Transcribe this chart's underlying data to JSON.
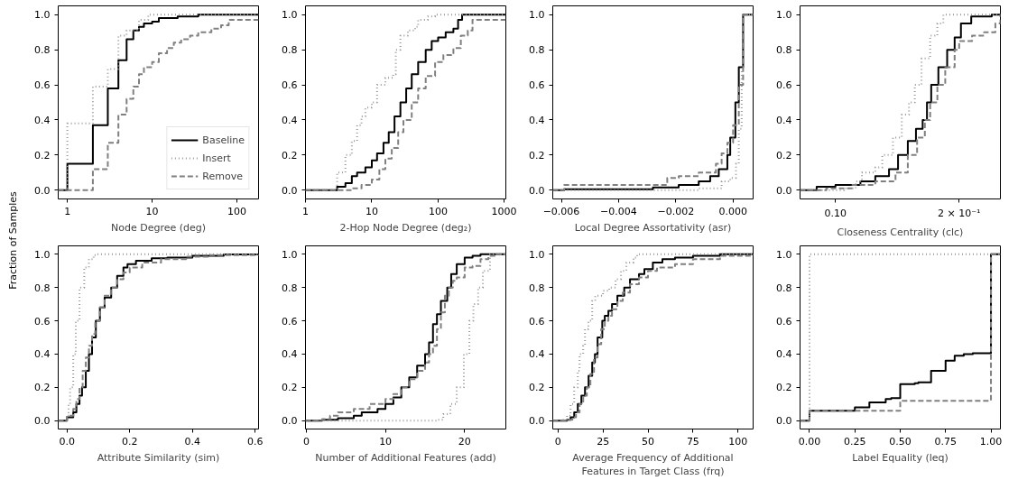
{
  "chart_data": [
    {
      "type": "step",
      "ylabel": "Fraction of Samples",
      "xlabel": "Node Degree (deg)",
      "log": "x",
      "xlim": [
        0.78,
        180
      ],
      "xticks": [
        1,
        10,
        100
      ],
      "ylim": [
        -0.05,
        1.05
      ],
      "yticks": [
        {
          "value": 0,
          "label": "0.0"
        },
        {
          "value": 0.2,
          "label": "0.2"
        },
        {
          "value": 0.4,
          "label": "0.4"
        },
        {
          "value": 0.6,
          "label": "0.6"
        },
        {
          "value": 0.8,
          "label": "0.8"
        },
        {
          "value": 1,
          "label": "1.0"
        }
      ],
      "legend": "bottom right",
      "series": [
        {
          "name": "Baseline",
          "color": "#000000",
          "line_style": "solid",
          "x": [
            0.78,
            1,
            2,
            3,
            4,
            5,
            6,
            7,
            8,
            10,
            12,
            20,
            35,
            180
          ],
          "values": [
            0,
            0.15,
            0.37,
            0.58,
            0.74,
            0.86,
            0.91,
            0.93,
            0.95,
            0.96,
            0.98,
            0.99,
            1.0,
            1.0
          ]
        },
        {
          "name": "Insert",
          "color": "#999999",
          "line_style": "dotted",
          "x": [
            0.78,
            1,
            2,
            3,
            4,
            5,
            7,
            9,
            180
          ],
          "values": [
            0,
            0.38,
            0.59,
            0.69,
            0.88,
            0.91,
            0.97,
            1.0,
            1.0
          ]
        },
        {
          "name": "Remove",
          "color": "#808080",
          "line_style": "dashed",
          "x": [
            0.78,
            2,
            3,
            4,
            5,
            6,
            7,
            8,
            10,
            12,
            15,
            18,
            22,
            28,
            35,
            50,
            65,
            80,
            180
          ],
          "values": [
            0,
            0.12,
            0.27,
            0.43,
            0.52,
            0.59,
            0.66,
            0.7,
            0.73,
            0.78,
            0.81,
            0.84,
            0.86,
            0.88,
            0.9,
            0.92,
            0.94,
            0.97,
            0.97
          ]
        }
      ]
    },
    {
      "type": "step",
      "xlabel": "2-Hop Node Degree (deg₂)",
      "log": "x",
      "xlim": [
        1,
        1050
      ],
      "xticks": [
        1,
        10,
        100,
        1000
      ],
      "ylim": [
        -0.05,
        1.05
      ],
      "yticks": [
        {
          "value": 0,
          "label": "0.0"
        },
        {
          "value": 0.2,
          "label": "0.2"
        },
        {
          "value": 0.4,
          "label": "0.4"
        },
        {
          "value": 0.6,
          "label": "0.6"
        },
        {
          "value": 0.8,
          "label": "0.8"
        },
        {
          "value": 1,
          "label": "1.0"
        }
      ],
      "series": [
        {
          "color": "#000000",
          "line_style": "solid",
          "x": [
            1,
            3,
            4,
            5,
            6,
            8,
            10,
            12,
            15,
            18,
            22,
            27,
            33,
            40,
            50,
            65,
            80,
            100,
            130,
            170,
            200,
            230,
            1050
          ],
          "values": [
            0,
            0.02,
            0.04,
            0.08,
            0.1,
            0.13,
            0.17,
            0.21,
            0.27,
            0.33,
            0.42,
            0.5,
            0.58,
            0.66,
            0.73,
            0.8,
            0.85,
            0.87,
            0.9,
            0.92,
            0.97,
            1.0,
            1.0
          ]
        },
        {
          "color": "#999999",
          "line_style": "dotted",
          "x": [
            1,
            3,
            4,
            5,
            6,
            7,
            8,
            10,
            12,
            16,
            21,
            23,
            27,
            35,
            45,
            50,
            70,
            90,
            1050
          ],
          "values": [
            0,
            0.1,
            0.2,
            0.28,
            0.37,
            0.42,
            0.47,
            0.5,
            0.6,
            0.64,
            0.66,
            0.8,
            0.88,
            0.91,
            0.93,
            0.97,
            0.99,
            1.0,
            1.0
          ]
        },
        {
          "color": "#808080",
          "line_style": "dashed",
          "x": [
            1,
            5,
            7,
            10,
            13,
            16,
            20,
            25,
            30,
            40,
            50,
            65,
            90,
            120,
            170,
            220,
            280,
            330,
            1050
          ],
          "values": [
            0,
            0.01,
            0.03,
            0.06,
            0.12,
            0.18,
            0.24,
            0.33,
            0.4,
            0.5,
            0.58,
            0.65,
            0.73,
            0.77,
            0.81,
            0.88,
            0.91,
            0.97,
            0.97
          ]
        }
      ]
    },
    {
      "type": "step",
      "xlabel": "Local Degree Assortativity (asr)",
      "xlim": [
        -0.0063,
        0.0007
      ],
      "xticks": [
        {
          "value": -0.006,
          "label": "−0.006"
        },
        {
          "value": -0.004,
          "label": "−0.004"
        },
        {
          "value": -0.002,
          "label": "−0.002"
        },
        {
          "value": 0,
          "label": "0.000"
        }
      ],
      "ylim": [
        -0.05,
        1.05
      ],
      "yticks": [
        {
          "value": 0,
          "label": "0.0"
        },
        {
          "value": 0.2,
          "label": "0.2"
        },
        {
          "value": 0.4,
          "label": "0.4"
        },
        {
          "value": 0.6,
          "label": "0.6"
        },
        {
          "value": 0.8,
          "label": "0.8"
        },
        {
          "value": 1,
          "label": "1.0"
        }
      ],
      "series": [
        {
          "color": "#000000",
          "line_style": "solid",
          "x": [
            -0.0063,
            -0.0059,
            -0.0028,
            -0.0019,
            -0.0012,
            -0.0008,
            -0.0005,
            -0.0002,
            -0.0001,
            8e-05,
            0.0002,
            0.00035,
            0.0007
          ],
          "values": [
            0,
            0.005,
            0.015,
            0.03,
            0.05,
            0.08,
            0.12,
            0.2,
            0.3,
            0.5,
            0.7,
            1.0,
            1.0
          ]
        },
        {
          "color": "#999999",
          "line_style": "dotted",
          "x": [
            -0.0063,
            -0.0012,
            -0.0004,
            -0.0001,
            0.0001,
            0.0002,
            0.0003,
            0.00035,
            0.0007
          ],
          "values": [
            0,
            0.01,
            0.05,
            0.07,
            0.15,
            0.35,
            0.7,
            1.0,
            1.0
          ]
        },
        {
          "color": "#808080",
          "line_style": "dashed",
          "x": [
            -0.0063,
            -0.0059,
            -0.0023,
            -0.0019,
            -0.0012,
            -0.0006,
            -0.0004,
            -0.0002,
            0.0,
            0.0002,
            0.00035,
            0.0007
          ],
          "values": [
            0,
            0.03,
            0.07,
            0.08,
            0.1,
            0.15,
            0.21,
            0.27,
            0.37,
            0.6,
            1.0,
            1.0
          ]
        }
      ]
    },
    {
      "type": "step",
      "xlabel": "Closeness Centrality (clc)",
      "log": "x",
      "xlim": [
        0.082,
        0.252
      ],
      "xticks": [
        {
          "value": 0.1,
          "label": "0.10"
        },
        {
          "value": 0.2,
          "label": "2 × 10⁻¹"
        }
      ],
      "ylim": [
        -0.05,
        1.05
      ],
      "yticks": [
        {
          "value": 0,
          "label": "0.0"
        },
        {
          "value": 0.2,
          "label": "0.2"
        },
        {
          "value": 0.4,
          "label": "0.4"
        },
        {
          "value": 0.6,
          "label": "0.6"
        },
        {
          "value": 0.8,
          "label": "0.8"
        },
        {
          "value": 1,
          "label": "1.0"
        }
      ],
      "series": [
        {
          "color": "#000000",
          "line_style": "solid",
          "x": [
            0.082,
            0.09,
            0.1,
            0.115,
            0.125,
            0.135,
            0.142,
            0.15,
            0.157,
            0.163,
            0.167,
            0.171,
            0.178,
            0.187,
            0.195,
            0.202,
            0.214,
            0.24,
            0.252
          ],
          "values": [
            0,
            0.02,
            0.03,
            0.05,
            0.08,
            0.12,
            0.2,
            0.28,
            0.35,
            0.4,
            0.5,
            0.6,
            0.7,
            0.8,
            0.87,
            0.95,
            0.99,
            1.0,
            1.0
          ]
        },
        {
          "color": "#999999",
          "line_style": "dotted",
          "x": [
            0.082,
            0.105,
            0.112,
            0.116,
            0.125,
            0.13,
            0.138,
            0.145,
            0.151,
            0.156,
            0.162,
            0.17,
            0.177,
            0.183,
            0.252
          ],
          "values": [
            0,
            0.01,
            0.05,
            0.1,
            0.13,
            0.2,
            0.3,
            0.43,
            0.5,
            0.6,
            0.75,
            0.88,
            0.95,
            1.0,
            1.0
          ]
        },
        {
          "color": "#808080",
          "line_style": "dashed",
          "x": [
            0.082,
            0.095,
            0.11,
            0.125,
            0.14,
            0.15,
            0.158,
            0.165,
            0.17,
            0.177,
            0.185,
            0.195,
            0.2,
            0.215,
            0.23,
            0.245,
            0.252
          ],
          "values": [
            0,
            0.01,
            0.03,
            0.05,
            0.1,
            0.2,
            0.3,
            0.4,
            0.5,
            0.6,
            0.7,
            0.8,
            0.85,
            0.88,
            0.9,
            0.95,
            1.0
          ]
        }
      ]
    },
    {
      "type": "step",
      "xlabel": "Attribute Similarity (sim)",
      "xlim": [
        -0.028,
        0.611
      ],
      "xticks": [
        {
          "value": 0,
          "label": "0.0"
        },
        {
          "value": 0.2,
          "label": "0.2"
        },
        {
          "value": 0.4,
          "label": "0.4"
        },
        {
          "value": 0.6,
          "label": "0.6"
        }
      ],
      "ylim": [
        -0.05,
        1.05
      ],
      "yticks": [
        {
          "value": 0,
          "label": "0.0"
        },
        {
          "value": 0.2,
          "label": "0.2"
        },
        {
          "value": 0.4,
          "label": "0.4"
        },
        {
          "value": 0.6,
          "label": "0.6"
        },
        {
          "value": 0.8,
          "label": "0.8"
        },
        {
          "value": 1,
          "label": "1.0"
        }
      ],
      "series": [
        {
          "color": "#000000",
          "line_style": "solid",
          "x": [
            -0.028,
            0.0,
            0.02,
            0.03,
            0.04,
            0.048,
            0.06,
            0.07,
            0.08,
            0.092,
            0.105,
            0.12,
            0.141,
            0.16,
            0.18,
            0.193,
            0.22,
            0.27,
            0.32,
            0.4,
            0.5,
            0.611
          ],
          "values": [
            0,
            0.02,
            0.05,
            0.1,
            0.15,
            0.2,
            0.3,
            0.4,
            0.5,
            0.6,
            0.68,
            0.74,
            0.8,
            0.87,
            0.92,
            0.94,
            0.96,
            0.975,
            0.98,
            0.99,
            0.998,
            1.0
          ]
        },
        {
          "color": "#999999",
          "line_style": "dotted",
          "x": [
            -0.028,
            0.0,
            0.005,
            0.01,
            0.02,
            0.028,
            0.04,
            0.055,
            0.07,
            0.085,
            0.097,
            0.611
          ],
          "values": [
            0,
            0.03,
            0.1,
            0.2,
            0.4,
            0.6,
            0.8,
            0.92,
            0.97,
            0.995,
            1.0,
            1.0
          ]
        },
        {
          "color": "#808080",
          "line_style": "dashed",
          "x": [
            -0.028,
            0.0,
            0.02,
            0.03,
            0.04,
            0.05,
            0.06,
            0.07,
            0.08,
            0.09,
            0.105,
            0.12,
            0.14,
            0.16,
            0.18,
            0.2,
            0.24,
            0.3,
            0.38,
            0.45,
            0.611
          ],
          "values": [
            0,
            0.03,
            0.07,
            0.13,
            0.2,
            0.3,
            0.38,
            0.45,
            0.52,
            0.6,
            0.68,
            0.75,
            0.8,
            0.85,
            0.89,
            0.92,
            0.95,
            0.97,
            0.985,
            0.995,
            1.0
          ]
        }
      ]
    },
    {
      "type": "step",
      "xlabel": "Number of Additional Features (add)",
      "xlim": [
        -0.1,
        25.2
      ],
      "xticks": [
        0,
        10,
        20
      ],
      "ylim": [
        -0.05,
        1.05
      ],
      "yticks": [
        {
          "value": 0,
          "label": "0.0"
        },
        {
          "value": 0.2,
          "label": "0.2"
        },
        {
          "value": 0.4,
          "label": "0.4"
        },
        {
          "value": 0.6,
          "label": "0.6"
        },
        {
          "value": 0.8,
          "label": "0.8"
        },
        {
          "value": 1,
          "label": "1.0"
        }
      ],
      "series": [
        {
          "color": "#000000",
          "line_style": "solid",
          "x": [
            -0.1,
            2,
            4,
            6,
            7,
            9,
            10,
            11,
            12,
            13,
            14,
            15,
            15.5,
            16,
            16.5,
            17,
            17.8,
            18.3,
            19,
            20,
            21,
            22,
            25.2
          ],
          "values": [
            0,
            0.005,
            0.015,
            0.03,
            0.05,
            0.07,
            0.1,
            0.14,
            0.2,
            0.26,
            0.33,
            0.4,
            0.47,
            0.58,
            0.64,
            0.72,
            0.8,
            0.88,
            0.94,
            0.98,
            0.99,
            1.0,
            1.0
          ]
        },
        {
          "color": "#999999",
          "line_style": "dotted",
          "x": [
            -0.1,
            16.5,
            17.3,
            18.2,
            19,
            19.9,
            20.6,
            21.1,
            21.7,
            22.3,
            23.2,
            25.2
          ],
          "values": [
            0,
            0.005,
            0.04,
            0.1,
            0.2,
            0.4,
            0.6,
            0.7,
            0.8,
            0.9,
            1.0,
            1.0
          ]
        },
        {
          "color": "#808080",
          "line_style": "dashed",
          "x": [
            -0.1,
            2,
            3,
            4,
            6,
            8,
            10,
            11,
            12,
            13,
            14,
            15,
            15.5,
            16,
            16.5,
            17,
            17.5,
            18,
            18.5,
            19,
            20,
            21,
            22,
            23,
            24,
            25.2
          ],
          "values": [
            0,
            0.01,
            0.03,
            0.05,
            0.07,
            0.1,
            0.13,
            0.16,
            0.2,
            0.25,
            0.3,
            0.35,
            0.4,
            0.45,
            0.55,
            0.65,
            0.75,
            0.8,
            0.84,
            0.86,
            0.92,
            0.93,
            0.97,
            0.99,
            1.0,
            1.0
          ]
        }
      ]
    },
    {
      "type": "step",
      "xlabel": "Average Frequency of Additional\nFeatures in Target Class (frq)",
      "xlim": [
        -2.9,
        108.4
      ],
      "xticks": [
        0,
        25,
        50,
        75,
        100
      ],
      "ylim": [
        -0.05,
        1.05
      ],
      "yticks": [
        {
          "value": 0,
          "label": "0.0"
        },
        {
          "value": 0.2,
          "label": "0.2"
        },
        {
          "value": 0.4,
          "label": "0.4"
        },
        {
          "value": 0.6,
          "label": "0.6"
        },
        {
          "value": 0.8,
          "label": "0.8"
        },
        {
          "value": 1,
          "label": "1.0"
        }
      ],
      "series": [
        {
          "color": "#000000",
          "line_style": "solid",
          "x": [
            -2.9,
            5,
            7,
            9,
            11,
            13,
            15,
            17,
            19,
            20.5,
            22,
            24.6,
            26,
            28,
            30,
            33,
            36.8,
            40,
            45,
            48,
            52.7,
            58,
            65,
            75,
            90,
            108.4
          ],
          "values": [
            0,
            0.005,
            0.02,
            0.05,
            0.1,
            0.15,
            0.2,
            0.27,
            0.35,
            0.4,
            0.5,
            0.6,
            0.63,
            0.66,
            0.7,
            0.75,
            0.8,
            0.85,
            0.88,
            0.91,
            0.95,
            0.97,
            0.98,
            0.99,
            1.0,
            1.0
          ]
        },
        {
          "color": "#999999",
          "line_style": "dotted",
          "x": [
            -2.9,
            3,
            5,
            7,
            9,
            11,
            12,
            14,
            15,
            16.9,
            19,
            20.7,
            25,
            28.5,
            32,
            35,
            38,
            42,
            44,
            108.4
          ],
          "values": [
            0,
            0.005,
            0.03,
            0.1,
            0.2,
            0.3,
            0.4,
            0.45,
            0.55,
            0.6,
            0.72,
            0.75,
            0.78,
            0.8,
            0.85,
            0.9,
            0.95,
            0.98,
            1.0,
            1.0
          ]
        },
        {
          "color": "#808080",
          "line_style": "dashed",
          "x": [
            -2.9,
            5,
            8,
            10,
            12,
            14,
            16,
            18,
            20,
            22,
            24,
            26,
            28,
            30,
            33,
            36,
            40,
            45,
            50,
            55,
            65,
            75,
            90,
            108.4
          ],
          "values": [
            0,
            0.005,
            0.02,
            0.05,
            0.1,
            0.15,
            0.2,
            0.28,
            0.38,
            0.46,
            0.55,
            0.6,
            0.63,
            0.67,
            0.72,
            0.77,
            0.82,
            0.86,
            0.9,
            0.92,
            0.94,
            0.97,
            0.99,
            1.0
          ]
        }
      ]
    },
    {
      "type": "step",
      "xlabel": "Label Equality (leq)",
      "xlim": [
        -0.052,
        1.052
      ],
      "xticks": [
        {
          "value": 0,
          "label": "0.00"
        },
        {
          "value": 0.25,
          "label": "0.25"
        },
        {
          "value": 0.5,
          "label": "0.50"
        },
        {
          "value": 0.75,
          "label": "0.75"
        },
        {
          "value": 1,
          "label": "1.00"
        }
      ],
      "ylim": [
        -0.05,
        1.05
      ],
      "yticks": [
        {
          "value": 0,
          "label": "0.0"
        },
        {
          "value": 0.2,
          "label": "0.2"
        },
        {
          "value": 0.4,
          "label": "0.4"
        },
        {
          "value": 0.6,
          "label": "0.6"
        },
        {
          "value": 0.8,
          "label": "0.8"
        },
        {
          "value": 1,
          "label": "1.0"
        }
      ],
      "series": [
        {
          "color": "#000000",
          "line_style": "solid",
          "x": [
            -0.052,
            0.0,
            0.17,
            0.25,
            0.33,
            0.42,
            0.45,
            0.5,
            0.58,
            0.6,
            0.67,
            0.75,
            0.8,
            0.85,
            0.9,
            1.0,
            1.052
          ],
          "values": [
            0,
            0.06,
            0.06,
            0.08,
            0.11,
            0.13,
            0.135,
            0.22,
            0.225,
            0.23,
            0.3,
            0.36,
            0.39,
            0.4,
            0.405,
            1.0,
            1.0
          ]
        },
        {
          "color": "#999999",
          "line_style": "dotted",
          "x": [
            -0.052,
            0.0,
            1.052
          ],
          "values": [
            0,
            1.0,
            1.0
          ]
        },
        {
          "color": "#808080",
          "line_style": "dashed",
          "x": [
            -0.052,
            0.0,
            0.5,
            1.0,
            1.052
          ],
          "values": [
            0,
            0.06,
            0.12,
            1.0,
            1.0
          ]
        }
      ]
    }
  ]
}
